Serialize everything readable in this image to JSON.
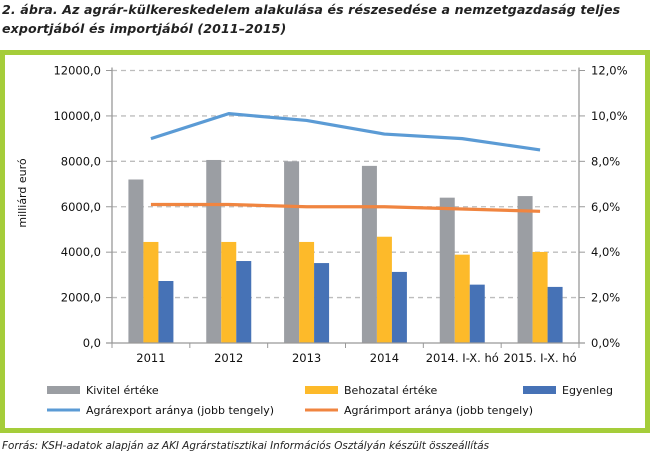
{
  "figure": {
    "title_line1": "2. ábra. Az agrár-külkereskedelem alakulása és részesedése a nemzetgazdaság teljes",
    "title_line2": "exportjából és importjából (2011–2015)",
    "source": "Forrás: KSH-adatok alapján az AKI Agrárstatisztikai Információs Osztályán készült összeállítás",
    "frame_color": "#a5cd3a"
  },
  "chart_data": {
    "type": "bar",
    "title": "Az agrár-külkereskedelem alakulása és részesedése a nemzetgazdaság teljes exportjából és importjából (2011–2015)",
    "xlabel": "",
    "ylabel": "milliárd euró",
    "ylabel_right": "",
    "categories": [
      "2011",
      "2012",
      "2013",
      "2014",
      "2014. I-X. hó",
      "2015. I-X. hó"
    ],
    "ylim": [
      0,
      12000
    ],
    "y_ticks": [
      "0,0",
      "2000,0",
      "4000,0",
      "6000,0",
      "8000,0",
      "10000,0",
      "12000,0"
    ],
    "y_right_lim": [
      0,
      12
    ],
    "y_right_ticks": [
      "0,0%",
      "2,0%",
      "4,0%",
      "6,0%",
      "8,0%",
      "10,0%",
      "12,0%"
    ],
    "grid": true,
    "legend_position": "bottom",
    "series": [
      {
        "name": "Kivitel értéke",
        "kind": "bar",
        "axis": "left",
        "color": "#9b9ea3",
        "values": [
          7200,
          8060,
          8000,
          7800,
          6400,
          6470
        ]
      },
      {
        "name": "Behozatal értéke",
        "kind": "bar",
        "axis": "left",
        "color": "#fdba2a",
        "values": [
          4450,
          4450,
          4450,
          4680,
          3890,
          4010
        ]
      },
      {
        "name": "Egyenleg",
        "kind": "bar",
        "axis": "left",
        "color": "#4672b6",
        "values": [
          2730,
          3610,
          3520,
          3130,
          2570,
          2470
        ]
      },
      {
        "name": "Agrárexport aránya (jobb tengely)",
        "kind": "line",
        "axis": "right",
        "color": "#5b9bd5",
        "values": [
          9.0,
          10.1,
          9.8,
          9.2,
          9.0,
          8.5
        ]
      },
      {
        "name": "Agrárimport aránya (jobb tengely)",
        "kind": "line",
        "axis": "right",
        "color": "#f08540",
        "values": [
          6.1,
          6.1,
          6.0,
          6.0,
          5.9,
          5.8
        ]
      }
    ]
  }
}
